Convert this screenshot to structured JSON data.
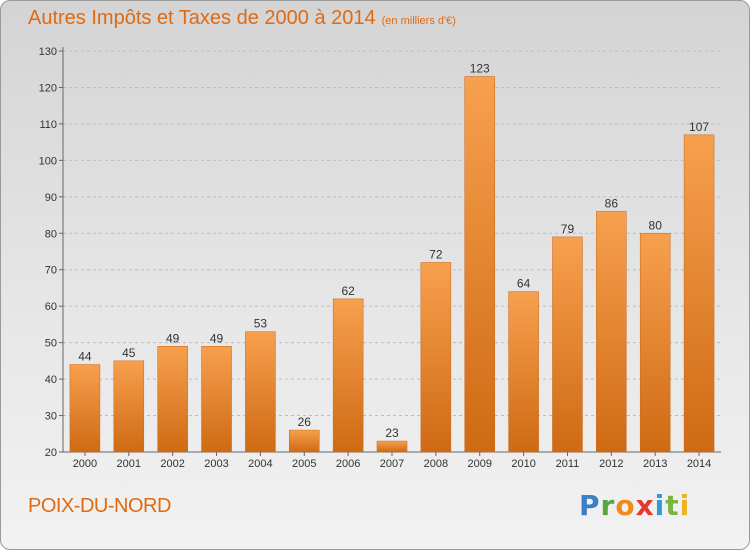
{
  "title": "Autres Impôts et Taxes de 2000 à 2014",
  "subtitle": "(en milliers d'€)",
  "commune": "POIX-DU-NORD",
  "logo": {
    "text": "Proxiti"
  },
  "colors": {
    "bar_top": "#f7a04e",
    "bar_bottom": "#cf6a14",
    "accent": "#e06a12"
  },
  "chart_data": {
    "type": "bar",
    "title": "Autres Impôts et Taxes de 2000 à 2014",
    "subtitle": "(en milliers d'€)",
    "categories": [
      "2000",
      "2001",
      "2002",
      "2003",
      "2004",
      "2005",
      "2006",
      "2007",
      "2008",
      "2009",
      "2010",
      "2011",
      "2012",
      "2013",
      "2014"
    ],
    "values": [
      44,
      45,
      49,
      49,
      53,
      26,
      62,
      23,
      72,
      123,
      64,
      79,
      86,
      80,
      107
    ],
    "ylim": [
      20,
      130
    ],
    "yticks": [
      20,
      30,
      40,
      50,
      60,
      70,
      80,
      90,
      100,
      110,
      120,
      130
    ],
    "grid": true
  }
}
